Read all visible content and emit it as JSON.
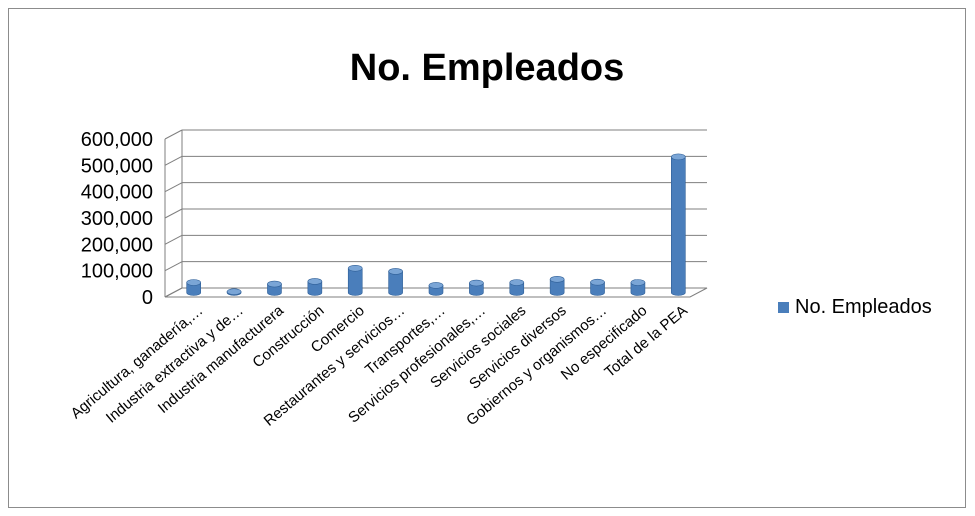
{
  "chart_data": {
    "type": "bar",
    "title": "No. Empleados",
    "categories": [
      "Agricultura, ganadería,…",
      "Industria extractiva y de…",
      "Industria manufacturera",
      "Construcción",
      "Comercio",
      "Restaurantes y servicios…",
      "Transportes,…",
      "Servicios profesionales,…",
      "Servicios sociales",
      "Servicios diversos",
      "Gobiernos y organismos…",
      "No especificado",
      "Total de la PEA"
    ],
    "series": [
      {
        "name": "No. Empleados",
        "values": [
          38000,
          3000,
          32000,
          42000,
          92000,
          80000,
          27000,
          36000,
          38000,
          50000,
          39000,
          38000,
          515000
        ]
      }
    ],
    "yticks": [
      "0",
      "100,000",
      "200,000",
      "300,000",
      "400,000",
      "500,000",
      "600,000"
    ],
    "ylim": [
      0,
      600000
    ],
    "legend_position": "right",
    "grid": true,
    "colors": {
      "bar": "#4a7ebb",
      "bar_dark": "#2f5f97",
      "bar_light": "#7aa5d6",
      "grid": "#7f7f7f"
    }
  }
}
